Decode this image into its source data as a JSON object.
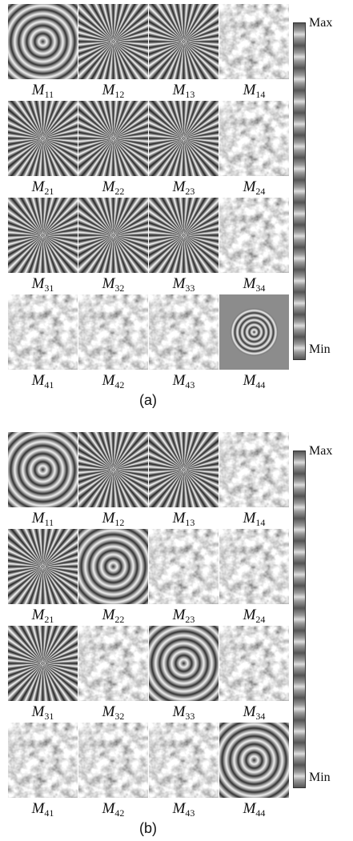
{
  "panels": [
    {
      "labels": [
        {
          "symbol": "M",
          "index": "11"
        },
        {
          "symbol": "M",
          "index": "12"
        },
        {
          "symbol": "M",
          "index": "13"
        },
        {
          "symbol": "M",
          "index": "14"
        },
        {
          "symbol": "M",
          "index": "21"
        },
        {
          "symbol": "M",
          "index": "22"
        },
        {
          "symbol": "M",
          "index": "23"
        },
        {
          "symbol": "M",
          "index": "24"
        },
        {
          "symbol": "M",
          "index": "31"
        },
        {
          "symbol": "M",
          "index": "32"
        },
        {
          "symbol": "M",
          "index": "33"
        },
        {
          "symbol": "M",
          "index": "34"
        },
        {
          "symbol": "M",
          "index": "41"
        },
        {
          "symbol": "M",
          "index": "42"
        },
        {
          "symbol": "M",
          "index": "43"
        },
        {
          "symbol": "M",
          "index": "44"
        }
      ],
      "colorbar": {
        "max": "Max",
        "min": "Min"
      },
      "caption": "(a)"
    },
    {
      "labels": [
        {
          "symbol": "M",
          "index": "11"
        },
        {
          "symbol": "M",
          "index": "12"
        },
        {
          "symbol": "M",
          "index": "13"
        },
        {
          "symbol": "M",
          "index": "14"
        },
        {
          "symbol": "M",
          "index": "21"
        },
        {
          "symbol": "M",
          "index": "22"
        },
        {
          "symbol": "M",
          "index": "23"
        },
        {
          "symbol": "M",
          "index": "24"
        },
        {
          "symbol": "M",
          "index": "31"
        },
        {
          "symbol": "M",
          "index": "32"
        },
        {
          "symbol": "M",
          "index": "33"
        },
        {
          "symbol": "M",
          "index": "34"
        },
        {
          "symbol": "M",
          "index": "41"
        },
        {
          "symbol": "M",
          "index": "42"
        },
        {
          "symbol": "M",
          "index": "43"
        },
        {
          "symbol": "M",
          "index": "44"
        }
      ],
      "colorbar": {
        "max": "Max",
        "min": "Min"
      },
      "caption": "(b)"
    }
  ]
}
